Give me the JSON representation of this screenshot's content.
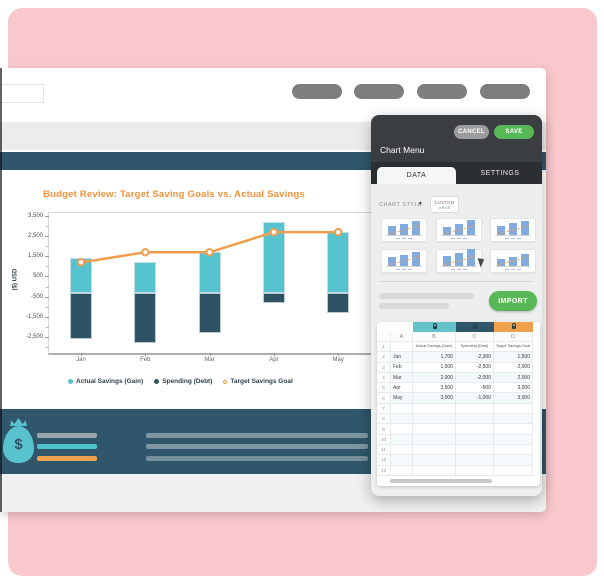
{
  "colors": {
    "pink_background": "#f9c8cc",
    "accent_orange": "#f2923c",
    "teal_light": "#56c4cf",
    "teal_dark": "#2e5365",
    "nav_band": "#2f566a",
    "panel_dark": "#3a3e41",
    "green_button": "#58b757",
    "gray_button": "#7e7e7e"
  },
  "chart": {
    "title": "Budget Review: Target Saving Goals vs. Actual Savings",
    "ylabel": "($) USD"
  },
  "chart_data": {
    "type": "combo",
    "title": "Budget Review: Target Saving Goals vs. Actual Savings",
    "ylabel": "($) USD",
    "categories": [
      "Jan",
      "Feb",
      "Mar",
      "Apr",
      "May"
    ],
    "series": [
      {
        "name": "Actual Savings (Gain)",
        "type": "bar",
        "color": "#56c4cf",
        "values": [
          1700,
          1500,
          2000,
          3500,
          3000
        ]
      },
      {
        "name": "Spending (Debt)",
        "type": "bar",
        "color": "#2e5365",
        "values": [
          -2300,
          -2500,
          -2000,
          -500,
          -1000
        ]
      },
      {
        "name": "Target Savings Goal",
        "type": "line",
        "color": "#ef9d4e",
        "values": [
          1500,
          2000,
          2000,
          3000,
          3000
        ]
      }
    ],
    "yticks": [
      3500,
      2500,
      1500,
      500,
      -500,
      -1500,
      -2500
    ],
    "minor_ticks": [
      3000,
      2000,
      1000,
      0,
      -1000,
      -2000,
      -3000
    ],
    "ylim": [
      -3250,
      3650
    ],
    "stack_offset": -300,
    "grid": false,
    "legend_position": "bottom"
  },
  "footer": {
    "money_bag_symbol": "$"
  },
  "panel": {
    "header": {
      "title": "Chart Menu",
      "cancel_label": "CANCEL",
      "save_label": "SAVE"
    },
    "tabs": [
      {
        "label": "DATA",
        "active": true
      },
      {
        "label": "SETTINGS",
        "active": false
      }
    ],
    "chart_style": {
      "label": "CHART STYLE",
      "selected": "CUSTOM"
    },
    "import_label": "IMPORT",
    "spreadsheet": {
      "column_letters": [
        "A",
        "B",
        "C",
        "D"
      ],
      "column_tab_colors": [
        "#65c1ca",
        "#2f5668",
        "#eea04b"
      ],
      "header_row": [
        "Actual Savings (Gain)",
        "Spending (Debt)",
        "Target Savings Goal"
      ],
      "rows": [
        [
          "Jan",
          "1,700",
          "-2,300",
          "1,500"
        ],
        [
          "Feb",
          "1,500",
          "-2,500",
          "2,000"
        ],
        [
          "Mar",
          "2,000",
          "-2,000",
          "2,000"
        ],
        [
          "Apr",
          "3,500",
          "-500",
          "3,000"
        ],
        [
          "May",
          "3,000",
          "-1,000",
          "3,000"
        ]
      ],
      "total_row_count": 13
    }
  }
}
